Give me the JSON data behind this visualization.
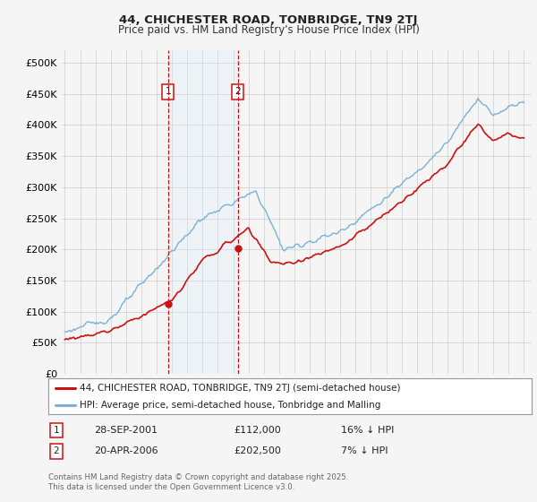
{
  "title1": "44, CHICHESTER ROAD, TONBRIDGE, TN9 2TJ",
  "title2": "Price paid vs. HM Land Registry's House Price Index (HPI)",
  "ylabel_ticks": [
    "£0",
    "£50K",
    "£100K",
    "£150K",
    "£200K",
    "£250K",
    "£300K",
    "£350K",
    "£400K",
    "£450K",
    "£500K"
  ],
  "ytick_vals": [
    0,
    50000,
    100000,
    150000,
    200000,
    250000,
    300000,
    350000,
    400000,
    450000,
    500000
  ],
  "ylim": [
    0,
    520000
  ],
  "legend1": "44, CHICHESTER ROAD, TONBRIDGE, TN9 2TJ (semi-detached house)",
  "legend2": "HPI: Average price, semi-detached house, Tonbridge and Malling",
  "transaction1_date": "28-SEP-2001",
  "transaction1_price": "£112,000",
  "transaction1_hpi": "16% ↓ HPI",
  "transaction1_year": 2001.75,
  "transaction1_value": 112000,
  "transaction2_date": "20-APR-2006",
  "transaction2_price": "£202,500",
  "transaction2_hpi": "7% ↓ HPI",
  "transaction2_year": 2006.3,
  "transaction2_value": 202500,
  "hpi_color": "#7ab0d8",
  "price_color": "#cc1111",
  "marker_color": "#cc1111",
  "vline_color": "#cc1111",
  "shade_color": "#ddeeff",
  "grid_color": "#cccccc",
  "bg_color": "#f5f5f5",
  "plot_bg_color": "#f5f5f5",
  "footnote": "Contains HM Land Registry data © Crown copyright and database right 2025.\nThis data is licensed under the Open Government Licence v3.0."
}
